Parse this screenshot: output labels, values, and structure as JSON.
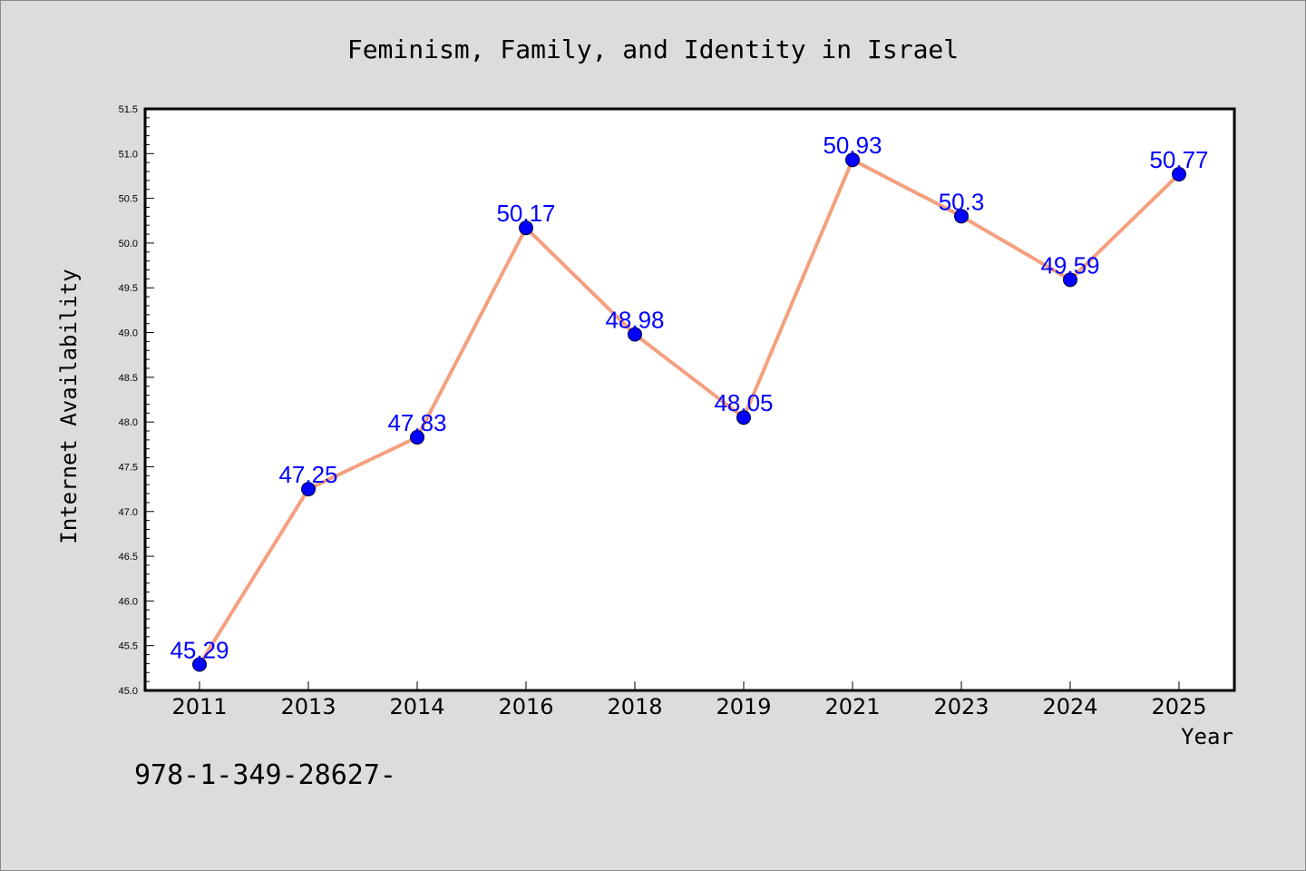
{
  "chart_data": {
    "type": "line",
    "title": "Feminism, Family, and Identity in Israel",
    "xlabel": "Year",
    "ylabel": "Internet Availability",
    "footnote": "978-1-349-28627-",
    "categories": [
      "2011",
      "2013",
      "2014",
      "2016",
      "2018",
      "2019",
      "2021",
      "2023",
      "2024",
      "2025"
    ],
    "series": [
      {
        "values": [
          45.29,
          47.25,
          47.83,
          50.17,
          48.98,
          48.05,
          50.93,
          50.3,
          49.59,
          50.77
        ],
        "data_labels": [
          "45.29",
          "47.25",
          "47.83",
          "50.17",
          "48.98",
          "48.05",
          "50.93",
          "50.3",
          "49.59",
          "50.77"
        ]
      }
    ],
    "ylim": [
      45.0,
      51.5
    ],
    "yticks": [
      "45.0",
      "45.5",
      "46.0",
      "46.5",
      "47.0",
      "47.5",
      "48.0",
      "48.5",
      "49.0",
      "49.5",
      "50.0",
      "50.5",
      "51.0",
      "51.5"
    ],
    "grid": false,
    "legend": "none",
    "colors": {
      "background": "#dcdcdc",
      "plot_background": "#ffffff",
      "line": "#f4a07f",
      "marker": "#0000ff",
      "data_label": "#0000ff",
      "text": "#000000"
    }
  }
}
